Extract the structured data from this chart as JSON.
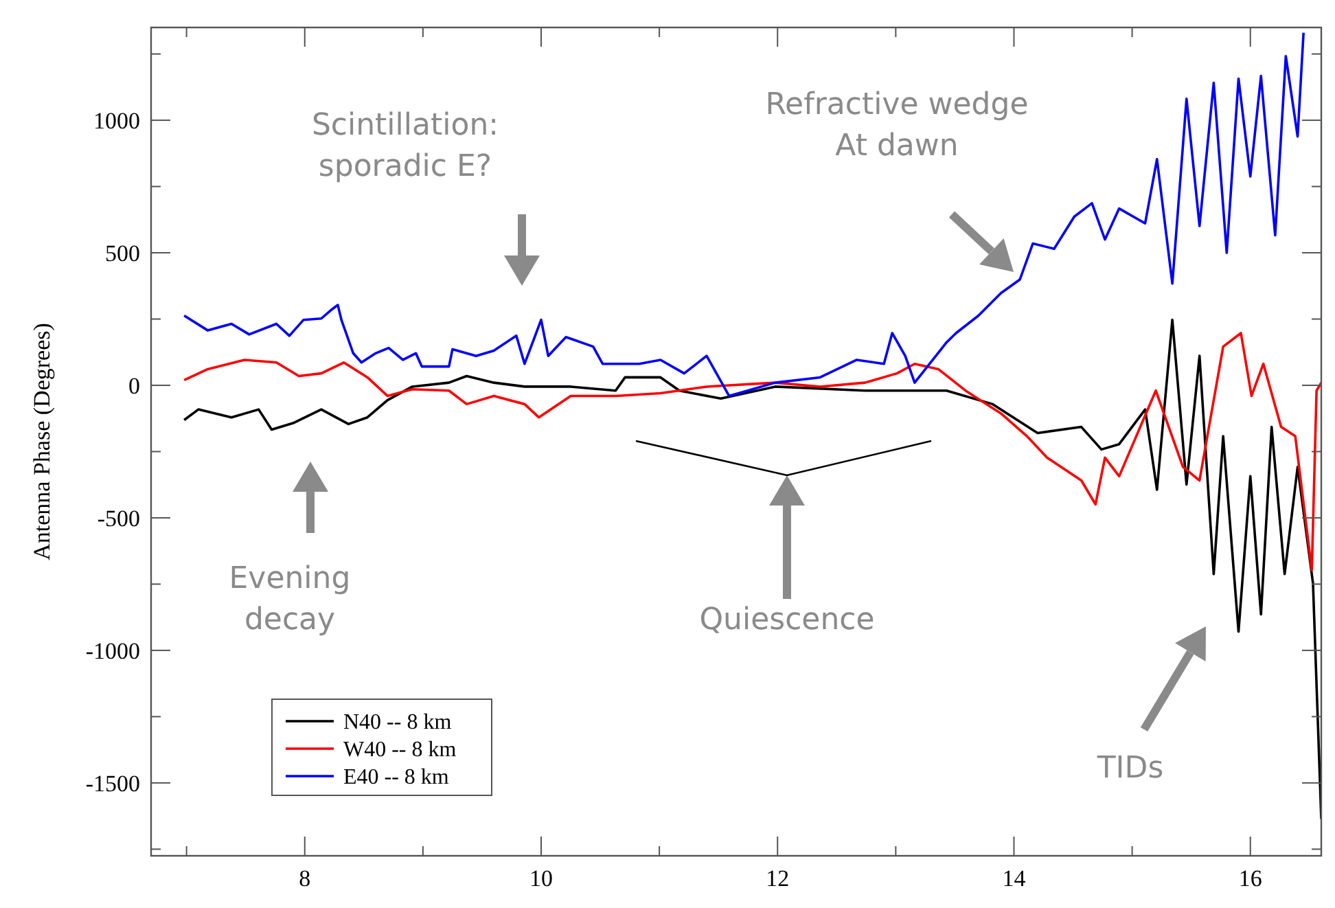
{
  "chart_data": {
    "type": "line",
    "ylabel": "Antenna Phase (Degrees)",
    "xlim": [
      6.7,
      16.6
    ],
    "ylim": [
      -1775,
      1350
    ],
    "xticks": [
      {
        "value": 7,
        "label": null
      },
      8,
      {
        "value": 9,
        "label": null
      },
      10,
      {
        "value": 11,
        "label": null
      },
      12,
      {
        "value": 13,
        "label": null
      },
      14,
      {
        "value": 15,
        "label": null
      },
      16
    ],
    "yticks": [
      {
        "value": -1750,
        "label": null
      },
      -1500,
      {
        "value": -1250,
        "label": null
      },
      -1000,
      {
        "value": -750,
        "label": null
      },
      -500,
      {
        "value": -250,
        "label": null
      },
      0,
      {
        "value": 250,
        "label": null
      },
      500,
      {
        "value": 750,
        "label": null
      },
      1000,
      {
        "value": 1250,
        "label": null
      }
    ],
    "grid": false,
    "legend": "bottom left",
    "line_style": "solid",
    "marker": "none",
    "series": [
      {
        "name": "N40 -- 8 km",
        "color": "#000000",
        "x": [
          6.98,
          7.1,
          7.38,
          7.61,
          7.72,
          7.91,
          8.14,
          8.37,
          8.53,
          8.7,
          8.91,
          9.22,
          9.37,
          9.6,
          9.86,
          10.25,
          10.63,
          10.71,
          11.01,
          11.17,
          11.52,
          11.98,
          12.74,
          13.13,
          13.43,
          13.82,
          14.2,
          14.57,
          14.74,
          14.89,
          15.11,
          15.21,
          15.34,
          15.46,
          15.57,
          15.69,
          15.77,
          15.9,
          16.0,
          16.09,
          16.18,
          16.29,
          16.4,
          16.53,
          16.6
        ],
        "values": [
          -131,
          -91,
          -121,
          -91,
          -167,
          -141,
          -91,
          -146,
          -121,
          -56,
          -5,
          10,
          35,
          10,
          -5,
          -5,
          -20,
          30,
          30,
          -20,
          -50,
          -5,
          -20,
          -20,
          -20,
          -71,
          -180,
          -157,
          -242,
          -222,
          -91,
          -394,
          247,
          -374,
          111,
          -712,
          -192,
          -929,
          -343,
          -864,
          -157,
          -712,
          -308,
          -747,
          -1636
        ]
      },
      {
        "name": "W40 -- 8 km",
        "color": "#ff0000",
        "x": [
          6.98,
          7.18,
          7.49,
          7.76,
          7.95,
          8.14,
          8.33,
          8.53,
          8.7,
          8.91,
          9.22,
          9.37,
          9.6,
          9.86,
          9.98,
          10.25,
          10.63,
          11.01,
          11.4,
          11.59,
          11.98,
          12.36,
          12.74,
          13.01,
          13.16,
          13.36,
          13.59,
          13.89,
          14.11,
          14.28,
          14.57,
          14.69,
          14.77,
          14.89,
          15.2,
          15.43,
          15.57,
          15.77,
          15.92,
          16.01,
          16.11,
          16.26,
          16.38,
          16.52,
          16.56,
          16.6
        ],
        "values": [
          20,
          61,
          96,
          86,
          35,
          45,
          86,
          30,
          -40,
          -15,
          -20,
          -71,
          -40,
          -71,
          -121,
          -40,
          -40,
          -30,
          -5,
          0,
          10,
          -5,
          10,
          45,
          81,
          61,
          -20,
          -106,
          -192,
          -273,
          -359,
          -449,
          -273,
          -343,
          -20,
          -308,
          -359,
          146,
          197,
          -40,
          81,
          -157,
          -192,
          -697,
          -20,
          10
        ]
      },
      {
        "name": "E40 -- 8 km",
        "color": "#0000ff",
        "x": [
          6.98,
          7.18,
          7.38,
          7.53,
          7.76,
          7.87,
          7.99,
          8.14,
          8.22,
          8.28,
          8.31,
          8.41,
          8.48,
          8.6,
          8.71,
          8.83,
          8.94,
          8.99,
          9.22,
          9.25,
          9.45,
          9.6,
          9.79,
          9.86,
          10.0,
          10.06,
          10.21,
          10.44,
          10.52,
          10.83,
          11.01,
          11.21,
          11.4,
          11.59,
          11.98,
          12.36,
          12.67,
          12.9,
          12.97,
          13.08,
          13.16,
          13.43,
          13.51,
          13.7,
          13.89,
          14.05,
          14.16,
          14.34,
          14.51,
          14.66,
          14.77,
          14.89,
          15.11,
          15.21,
          15.34,
          15.46,
          15.57,
          15.69,
          15.8,
          15.9,
          16.0,
          16.09,
          16.21,
          16.3,
          16.4,
          16.45
        ],
        "values": [
          263,
          207,
          232,
          192,
          232,
          187,
          247,
          252,
          283,
          303,
          247,
          121,
          86,
          121,
          141,
          96,
          121,
          71,
          71,
          136,
          111,
          131,
          187,
          81,
          247,
          111,
          182,
          146,
          81,
          81,
          96,
          45,
          111,
          -40,
          10,
          30,
          96,
          81,
          197,
          111,
          10,
          162,
          197,
          263,
          348,
          399,
          535,
          515,
          636,
          687,
          550,
          667,
          611,
          853,
          384,
          1081,
          601,
          1141,
          500,
          1157,
          788,
          1167,
          566,
          1242,
          939,
          1330
        ]
      }
    ],
    "annotations": [
      "Scintillation:\nsporadic E?",
      "Refractive wedge\nAt dawn",
      "Evening\ndecay",
      "Quiescence",
      "TIDs"
    ]
  }
}
